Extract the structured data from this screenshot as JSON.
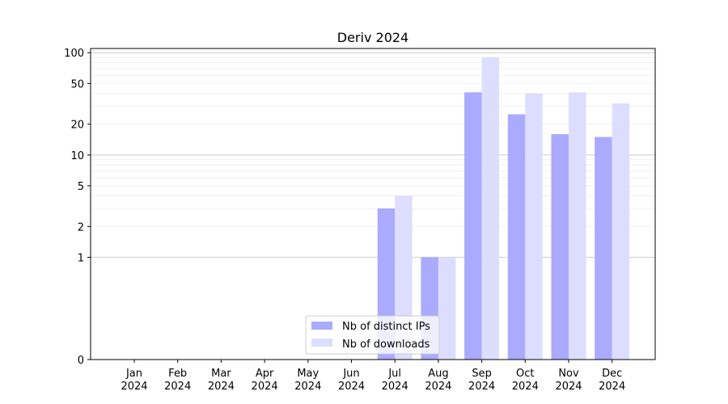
{
  "chart_data": {
    "type": "bar",
    "title": "Deriv 2024",
    "xlabel": "",
    "ylabel": "",
    "yscale": "symlog",
    "ylim": [
      0,
      110
    ],
    "yticks": [
      0,
      1,
      2,
      5,
      10,
      20,
      50,
      100
    ],
    "categories": [
      {
        "month": "Jan",
        "year": "2024"
      },
      {
        "month": "Feb",
        "year": "2024"
      },
      {
        "month": "Mar",
        "year": "2024"
      },
      {
        "month": "Apr",
        "year": "2024"
      },
      {
        "month": "May",
        "year": "2024"
      },
      {
        "month": "Jun",
        "year": "2024"
      },
      {
        "month": "Jul",
        "year": "2024"
      },
      {
        "month": "Aug",
        "year": "2024"
      },
      {
        "month": "Sep",
        "year": "2024"
      },
      {
        "month": "Oct",
        "year": "2024"
      },
      {
        "month": "Nov",
        "year": "2024"
      },
      {
        "month": "Dec",
        "year": "2024"
      }
    ],
    "series": [
      {
        "name": "Nb of distinct IPs",
        "color": "#aaaaff",
        "values": [
          0,
          0,
          0,
          0,
          0,
          0,
          3,
          1,
          41,
          25,
          16,
          15
        ]
      },
      {
        "name": "Nb of downloads",
        "color": "#ddddff",
        "values": [
          0,
          0,
          0,
          0,
          0,
          0,
          4,
          1,
          90,
          40,
          41,
          32
        ]
      }
    ],
    "legend": "lower-center",
    "grid": true
  }
}
